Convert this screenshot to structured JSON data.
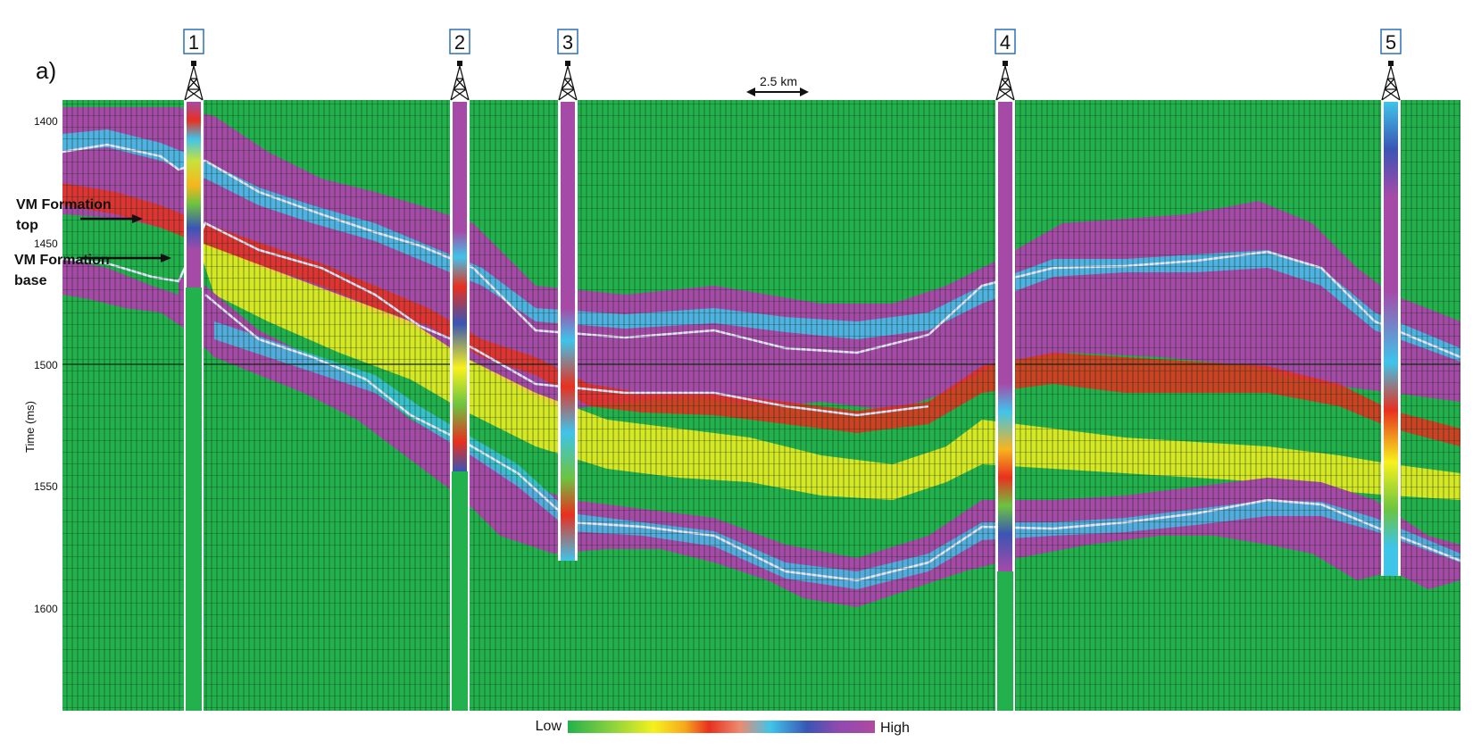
{
  "figure": {
    "panel_label": "a)",
    "y_axis_title": "Time (ms)",
    "y_ticks": [
      "1400",
      "1450",
      "1500",
      "1550",
      "1600"
    ],
    "scale_bar": "2.5 km",
    "annotations": {
      "top_label": "VM Formation top",
      "base_label": "VM Formation base"
    },
    "legend": {
      "low": "Low",
      "high": "High"
    }
  },
  "wells": [
    {
      "number": "1"
    },
    {
      "number": "2"
    },
    {
      "number": "3"
    },
    {
      "number": "4"
    },
    {
      "number": "5"
    }
  ],
  "colors": {
    "background": "#23b14d",
    "trace": "#0a2a10",
    "ramp": [
      "#23b14d",
      "#6cc440",
      "#c8e23a",
      "#f7f21d",
      "#f7b51d",
      "#e8301f",
      "#ed7f6b",
      "#3fc4ea",
      "#3a55b5",
      "#a64aa8"
    ],
    "box_border": "#2f6fb5",
    "horizon": "#c9c9e8"
  }
}
